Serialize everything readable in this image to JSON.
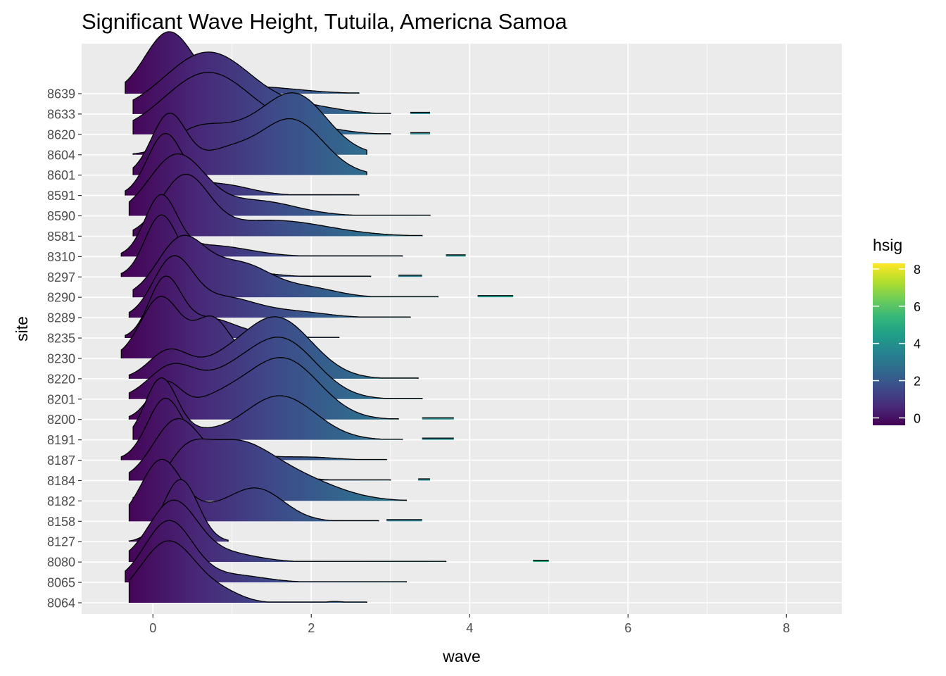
{
  "chart_data": {
    "type": "ridgeline",
    "title": "Significant Wave Height, Tutuila, Americna Samoa",
    "xlabel": "wave",
    "ylabel": "site",
    "xlim": [
      -0.9,
      8.7
    ],
    "x_ticks": [
      0,
      2,
      4,
      6,
      8
    ],
    "grid": true,
    "legend": {
      "title": "hsig",
      "position": "right",
      "ticks": [
        0,
        2,
        4,
        6,
        8
      ],
      "range": [
        -0.4,
        8.3
      ]
    },
    "colors": {
      "low": "#440154",
      "mid": "#21908C",
      "high": "#FDE725",
      "panel": "#EBEBEB",
      "grid": "#FFFFFF"
    },
    "series": [
      {
        "site": "8064",
        "min": -0.3,
        "max": 2.7,
        "gaps": [],
        "peaks": [
          [
            0.2,
            0.35,
            0.95
          ],
          [
            0.9,
            0.25,
            0.12
          ],
          [
            2.3,
            0.12,
            0.02
          ]
        ]
      },
      {
        "site": "8065",
        "min": -0.35,
        "max": 3.2,
        "gaps": [],
        "peaks": [
          [
            0.2,
            0.3,
            1.0
          ],
          [
            1.0,
            0.4,
            0.12
          ]
        ]
      },
      {
        "site": "8080",
        "min": -0.3,
        "max": 3.7,
        "gaps": [
          [
            4.8,
            5.0
          ]
        ],
        "peaks": [
          [
            0.25,
            0.3,
            1.0
          ],
          [
            0.9,
            0.4,
            0.15
          ]
        ]
      },
      {
        "site": "8127",
        "min": -0.3,
        "max": 0.95,
        "gaps": [],
        "peaks": [
          [
            0.35,
            0.22,
            1.0
          ]
        ]
      },
      {
        "site": "8158",
        "min": -0.3,
        "max": 2.85,
        "gaps": [
          [
            2.95,
            3.4
          ]
        ],
        "peaks": [
          [
            0.1,
            0.25,
            1.0
          ],
          [
            1.3,
            0.35,
            0.55
          ],
          [
            0.6,
            0.3,
            0.15
          ]
        ]
      },
      {
        "site": "8182",
        "min": -0.25,
        "max": 3.2,
        "gaps": [],
        "peaks": [
          [
            0.4,
            0.25,
            0.4
          ],
          [
            1.0,
            0.5,
            0.8
          ],
          [
            1.9,
            0.5,
            0.25
          ]
        ]
      },
      {
        "site": "8184",
        "min": -0.3,
        "max": 3.0,
        "gaps": [
          [
            3.35,
            3.5
          ]
        ],
        "peaks": [
          [
            0.3,
            0.3,
            1.0
          ],
          [
            1.1,
            0.45,
            0.3
          ]
        ]
      },
      {
        "site": "8187",
        "min": -0.4,
        "max": 2.95,
        "gaps": [],
        "peaks": [
          [
            0.15,
            0.22,
            1.0
          ],
          [
            0.7,
            0.5,
            0.2
          ],
          [
            2.0,
            0.35,
            0.05
          ]
        ]
      },
      {
        "site": "8191",
        "min": -0.25,
        "max": 3.15,
        "gaps": [
          [
            3.4,
            3.8
          ]
        ],
        "peaks": [
          [
            0.1,
            0.2,
            1.0
          ],
          [
            1.6,
            0.45,
            0.75
          ],
          [
            0.5,
            0.3,
            0.12
          ]
        ]
      },
      {
        "site": "8200",
        "min": -0.3,
        "max": 3.1,
        "gaps": [
          [
            3.4,
            3.8
          ]
        ],
        "peaks": [
          [
            0.15,
            0.2,
            0.55
          ],
          [
            1.65,
            0.45,
            1.0
          ],
          [
            0.8,
            0.4,
            0.3
          ]
        ]
      },
      {
        "site": "8201",
        "min": -0.3,
        "max": 3.4,
        "gaps": [],
        "peaks": [
          [
            0.25,
            0.3,
            0.55
          ],
          [
            1.6,
            0.45,
            1.0
          ],
          [
            0.9,
            0.3,
            0.2
          ]
        ]
      },
      {
        "site": "8220",
        "min": -0.3,
        "max": 3.35,
        "gaps": [],
        "peaks": [
          [
            0.2,
            0.25,
            0.45
          ],
          [
            1.55,
            0.45,
            1.0
          ],
          [
            0.8,
            0.3,
            0.15
          ]
        ]
      },
      {
        "site": "8230",
        "min": -0.4,
        "max": 2.0,
        "gaps": [],
        "peaks": [
          [
            0.1,
            0.25,
            1.0
          ],
          [
            0.75,
            0.22,
            0.65
          ]
        ]
      },
      {
        "site": "8235",
        "min": -0.35,
        "max": 2.35,
        "gaps": [],
        "peaks": [
          [
            0.15,
            0.2,
            1.0
          ],
          [
            0.7,
            0.35,
            0.35
          ],
          [
            1.5,
            0.3,
            0.05
          ]
        ]
      },
      {
        "site": "8289",
        "min": -0.3,
        "max": 3.25,
        "gaps": [],
        "peaks": [
          [
            0.25,
            0.25,
            1.0
          ],
          [
            0.9,
            0.4,
            0.35
          ],
          [
            1.8,
            0.4,
            0.1
          ]
        ]
      },
      {
        "site": "8290",
        "min": -0.25,
        "max": 3.6,
        "gaps": [
          [
            4.1,
            4.55
          ]
        ],
        "peaks": [
          [
            0.35,
            0.3,
            1.0
          ],
          [
            1.1,
            0.4,
            0.6
          ],
          [
            2.0,
            0.35,
            0.15
          ]
        ]
      },
      {
        "site": "8297",
        "min": -0.4,
        "max": 2.75,
        "gaps": [
          [
            3.1,
            3.4
          ]
        ],
        "peaks": [
          [
            0.1,
            0.2,
            1.0
          ],
          [
            0.7,
            0.5,
            0.2
          ]
        ]
      },
      {
        "site": "8310",
        "min": -0.4,
        "max": 3.15,
        "gaps": [
          [
            3.7,
            3.95
          ]
        ],
        "peaks": [
          [
            0.1,
            0.2,
            1.0
          ],
          [
            0.7,
            0.5,
            0.2
          ]
        ]
      },
      {
        "site": "8581",
        "min": -0.25,
        "max": 3.4,
        "gaps": [],
        "peaks": [
          [
            0.4,
            0.3,
            0.9
          ],
          [
            1.5,
            0.7,
            0.25
          ]
        ]
      },
      {
        "site": "8590",
        "min": -0.3,
        "max": 3.5,
        "gaps": [],
        "peaks": [
          [
            0.3,
            0.35,
            1.0
          ],
          [
            1.3,
            0.5,
            0.25
          ]
        ]
      },
      {
        "site": "8591",
        "min": -0.35,
        "max": 2.6,
        "gaps": [],
        "peaks": [
          [
            0.15,
            0.22,
            1.0
          ],
          [
            0.8,
            0.4,
            0.2
          ]
        ]
      },
      {
        "site": "8601",
        "min": -0.25,
        "max": 2.7,
        "gaps": [],
        "peaks": [
          [
            0.2,
            0.22,
            0.8
          ],
          [
            1.75,
            0.4,
            0.75
          ],
          [
            0.9,
            0.35,
            0.3
          ]
        ]
      },
      {
        "site": "8604",
        "min": -0.25,
        "max": 2.7,
        "gaps": [],
        "peaks": [
          [
            0.5,
            0.3,
            0.3
          ],
          [
            1.8,
            0.4,
            1.0
          ],
          [
            1.0,
            0.4,
            0.35
          ]
        ]
      },
      {
        "site": "8620",
        "min": -0.25,
        "max": 3.0,
        "gaps": [
          [
            3.25,
            3.5
          ]
        ],
        "peaks": [
          [
            0.7,
            0.55,
            1.0
          ],
          [
            2.0,
            0.4,
            0.1
          ]
        ]
      },
      {
        "site": "8633",
        "min": -0.25,
        "max": 3.0,
        "gaps": [
          [
            3.25,
            3.5
          ]
        ],
        "peaks": [
          [
            0.7,
            0.55,
            1.0
          ],
          [
            2.0,
            0.4,
            0.1
          ]
        ]
      },
      {
        "site": "8639",
        "min": -0.35,
        "max": 2.6,
        "gaps": [],
        "peaks": [
          [
            0.2,
            0.3,
            1.0
          ],
          [
            1.2,
            0.6,
            0.12
          ]
        ]
      }
    ]
  }
}
